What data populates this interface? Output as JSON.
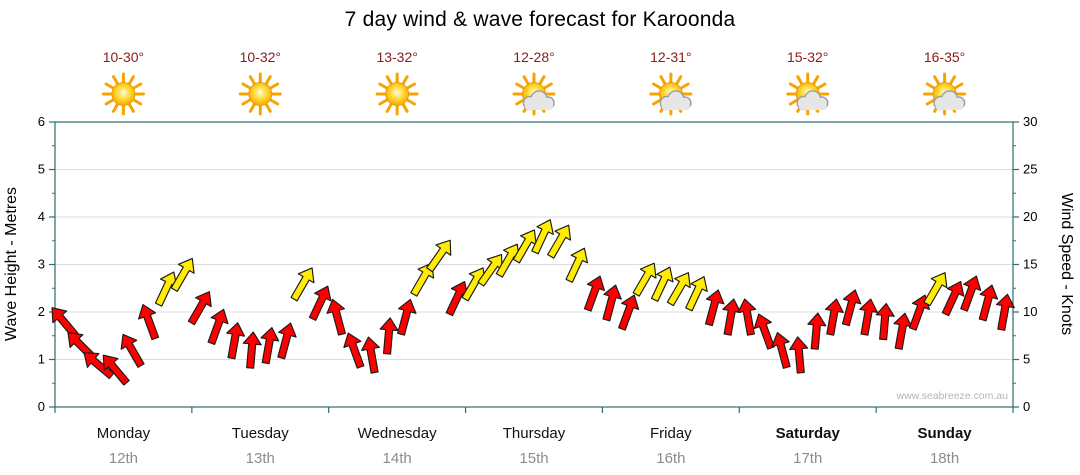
{
  "chart_data": {
    "type": "wind-arrows",
    "title": "7 day wind & wave forecast for Karoonda",
    "watermark": "www.seabreeze.com.au",
    "left_axis": {
      "label": "Wave Height - Metres",
      "min": 0,
      "max": 6,
      "ticks": [
        0,
        1,
        2,
        3,
        4,
        5,
        6
      ]
    },
    "right_axis": {
      "label": "Wind Speed - Knots",
      "min": 0,
      "max": 30,
      "ticks": [
        0,
        5,
        10,
        15,
        20,
        25,
        30
      ]
    },
    "grid": "horizontal",
    "points_per_day": 8,
    "days": [
      {
        "name": "Monday",
        "date": "12th",
        "temp": "10-30°",
        "icon": "sunny",
        "bold": false
      },
      {
        "name": "Tuesday",
        "date": "13th",
        "temp": "10-32°",
        "icon": "sunny",
        "bold": false
      },
      {
        "name": "Wednesday",
        "date": "14th",
        "temp": "13-32°",
        "icon": "sunny",
        "bold": false
      },
      {
        "name": "Thursday",
        "date": "15th",
        "temp": "12-28°",
        "icon": "partly-cloudy",
        "bold": false
      },
      {
        "name": "Friday",
        "date": "16th",
        "temp": "12-31°",
        "icon": "partly-cloudy",
        "bold": false
      },
      {
        "name": "Saturday",
        "date": "17th",
        "temp": "15-32°",
        "icon": "partly-cloudy",
        "bold": true
      },
      {
        "name": "Sunday",
        "date": "18th",
        "temp": "16-35°",
        "icon": "partly-cloudy",
        "bold": true
      }
    ],
    "series": [
      {
        "name": "Wind Speed",
        "unit": "knots",
        "points": [
          {
            "knots": 9,
            "dir_deg": -40,
            "color": "red"
          },
          {
            "knots": 6.5,
            "dir_deg": -45,
            "color": "red"
          },
          {
            "knots": 4.5,
            "dir_deg": -50,
            "color": "red"
          },
          {
            "knots": 4,
            "dir_deg": -40,
            "color": "red"
          },
          {
            "knots": 6,
            "dir_deg": -30,
            "color": "red"
          },
          {
            "knots": 9,
            "dir_deg": -20,
            "color": "red"
          },
          {
            "knots": 12.5,
            "dir_deg": 25,
            "color": "yellow"
          },
          {
            "knots": 14,
            "dir_deg": 30,
            "color": "yellow"
          },
          {
            "knots": 10.5,
            "dir_deg": 30,
            "color": "red"
          },
          {
            "knots": 8.5,
            "dir_deg": 20,
            "color": "red"
          },
          {
            "knots": 7,
            "dir_deg": 10,
            "color": "red"
          },
          {
            "knots": 6,
            "dir_deg": 5,
            "color": "red"
          },
          {
            "knots": 6.5,
            "dir_deg": 10,
            "color": "red"
          },
          {
            "knots": 7,
            "dir_deg": 15,
            "color": "red"
          },
          {
            "knots": 13,
            "dir_deg": 30,
            "color": "yellow"
          },
          {
            "knots": 11,
            "dir_deg": 25,
            "color": "red"
          },
          {
            "knots": 9.5,
            "dir_deg": -15,
            "color": "red"
          },
          {
            "knots": 6,
            "dir_deg": -20,
            "color": "red"
          },
          {
            "knots": 5.5,
            "dir_deg": -10,
            "color": "red"
          },
          {
            "knots": 7.5,
            "dir_deg": 5,
            "color": "red"
          },
          {
            "knots": 9.5,
            "dir_deg": 15,
            "color": "red"
          },
          {
            "knots": 13.5,
            "dir_deg": 30,
            "color": "yellow"
          },
          {
            "knots": 16,
            "dir_deg": 35,
            "color": "yellow"
          },
          {
            "knots": 11.5,
            "dir_deg": 25,
            "color": "red"
          },
          {
            "knots": 13,
            "dir_deg": 30,
            "color": "yellow"
          },
          {
            "knots": 14.5,
            "dir_deg": 35,
            "color": "yellow"
          },
          {
            "knots": 15.5,
            "dir_deg": 30,
            "color": "yellow"
          },
          {
            "knots": 17,
            "dir_deg": 30,
            "color": "yellow"
          },
          {
            "knots": 18,
            "dir_deg": 25,
            "color": "yellow"
          },
          {
            "knots": 17.5,
            "dir_deg": 30,
            "color": "yellow"
          },
          {
            "knots": 15,
            "dir_deg": 25,
            "color": "yellow"
          },
          {
            "knots": 12,
            "dir_deg": 20,
            "color": "red"
          },
          {
            "knots": 11,
            "dir_deg": 15,
            "color": "red"
          },
          {
            "knots": 10,
            "dir_deg": 20,
            "color": "red"
          },
          {
            "knots": 13.5,
            "dir_deg": 30,
            "color": "yellow"
          },
          {
            "knots": 13,
            "dir_deg": 25,
            "color": "yellow"
          },
          {
            "knots": 12.5,
            "dir_deg": 30,
            "color": "yellow"
          },
          {
            "knots": 12,
            "dir_deg": 25,
            "color": "yellow"
          },
          {
            "knots": 10.5,
            "dir_deg": 15,
            "color": "red"
          },
          {
            "knots": 9.5,
            "dir_deg": 10,
            "color": "red"
          },
          {
            "knots": 9.5,
            "dir_deg": -10,
            "color": "red"
          },
          {
            "knots": 8,
            "dir_deg": -20,
            "color": "red"
          },
          {
            "knots": 6,
            "dir_deg": -15,
            "color": "red"
          },
          {
            "knots": 5.5,
            "dir_deg": -5,
            "color": "red"
          },
          {
            "knots": 8,
            "dir_deg": 5,
            "color": "red"
          },
          {
            "knots": 9.5,
            "dir_deg": 10,
            "color": "red"
          },
          {
            "knots": 10.5,
            "dir_deg": 15,
            "color": "red"
          },
          {
            "knots": 9.5,
            "dir_deg": 10,
            "color": "red"
          },
          {
            "knots": 9,
            "dir_deg": 5,
            "color": "red"
          },
          {
            "knots": 8,
            "dir_deg": 10,
            "color": "red"
          },
          {
            "knots": 10,
            "dir_deg": 20,
            "color": "red"
          },
          {
            "knots": 12.5,
            "dir_deg": 30,
            "color": "yellow"
          },
          {
            "knots": 11.5,
            "dir_deg": 25,
            "color": "red"
          },
          {
            "knots": 12,
            "dir_deg": 20,
            "color": "red"
          },
          {
            "knots": 11,
            "dir_deg": 15,
            "color": "red"
          },
          {
            "knots": 10,
            "dir_deg": 10,
            "color": "red"
          }
        ]
      }
    ],
    "colors": {
      "red": "#ff0000",
      "yellow": "#ffec00",
      "arrow_outline": "#1a1a1a",
      "axis": "#2a6f6f",
      "grid": "#dcdcdc",
      "temp_text": "#8b1a1a",
      "day_text": "#111111",
      "date_text": "#8c8c8c",
      "watermark_text": "#b5b5b5"
    }
  }
}
